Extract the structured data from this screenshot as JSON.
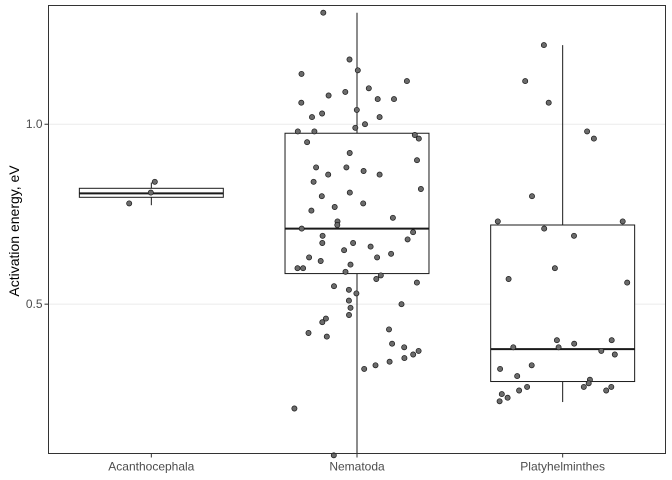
{
  "chart_data": {
    "type": "boxplot",
    "xlabel": "",
    "ylabel": "Activation energy, eV",
    "categories": [
      "Acanthocephala",
      "Nematoda",
      "Platyhelminthes"
    ],
    "ylim": [
      0.085,
      1.33
    ],
    "yticks": [
      0.5,
      1.0
    ],
    "ytick_labels": [
      "0.5",
      "1.0"
    ],
    "grid": true,
    "legend": "none",
    "colors": {
      "point_fill": "#6b6b6b",
      "point_stroke": "#1a1a1a",
      "box": "#1a1a1a",
      "grid": "#ebebeb",
      "panel_border": "#333333"
    },
    "boxes": [
      {
        "category": "Acanthocephala",
        "min": 0.775,
        "q1": 0.797,
        "median": 0.808,
        "q3": 0.822,
        "max": 0.838
      },
      {
        "category": "Nematoda",
        "min": 0.08,
        "q1": 0.585,
        "median": 0.71,
        "q3": 0.975,
        "max": 1.31
      },
      {
        "category": "Platyhelminthes",
        "min": 0.228,
        "q1": 0.285,
        "median": 0.375,
        "q3": 0.72,
        "max": 1.22
      }
    ],
    "points": [
      {
        "category": "Acanthocephala",
        "values": [
          0.81,
          0.84,
          0.78
        ]
      },
      {
        "category": "Nematoda",
        "values": [
          1.31,
          1.18,
          1.15,
          1.14,
          1.12,
          1.1,
          1.09,
          1.08,
          1.07,
          1.07,
          1.06,
          1.04,
          1.03,
          1.02,
          1.02,
          1.0,
          0.99,
          0.98,
          0.98,
          0.97,
          0.96,
          0.95,
          0.92,
          0.9,
          0.88,
          0.88,
          0.87,
          0.86,
          0.86,
          0.84,
          0.82,
          0.81,
          0.8,
          0.78,
          0.77,
          0.76,
          0.74,
          0.73,
          0.72,
          0.71,
          0.7,
          0.69,
          0.68,
          0.67,
          0.67,
          0.66,
          0.65,
          0.64,
          0.63,
          0.63,
          0.62,
          0.61,
          0.6,
          0.6,
          0.59,
          0.58,
          0.57,
          0.56,
          0.55,
          0.54,
          0.53,
          0.51,
          0.5,
          0.49,
          0.47,
          0.46,
          0.45,
          0.43,
          0.42,
          0.41,
          0.39,
          0.38,
          0.37,
          0.36,
          0.35,
          0.34,
          0.33,
          0.32,
          0.21,
          0.08
        ]
      },
      {
        "category": "Platyhelminthes",
        "values": [
          1.22,
          1.12,
          1.06,
          0.98,
          0.96,
          0.8,
          0.73,
          0.73,
          0.71,
          0.69,
          0.6,
          0.57,
          0.56,
          0.4,
          0.4,
          0.39,
          0.38,
          0.38,
          0.37,
          0.36,
          0.33,
          0.32,
          0.3,
          0.29,
          0.28,
          0.27,
          0.27,
          0.27,
          0.26,
          0.26,
          0.25,
          0.24,
          0.23
        ]
      }
    ]
  }
}
